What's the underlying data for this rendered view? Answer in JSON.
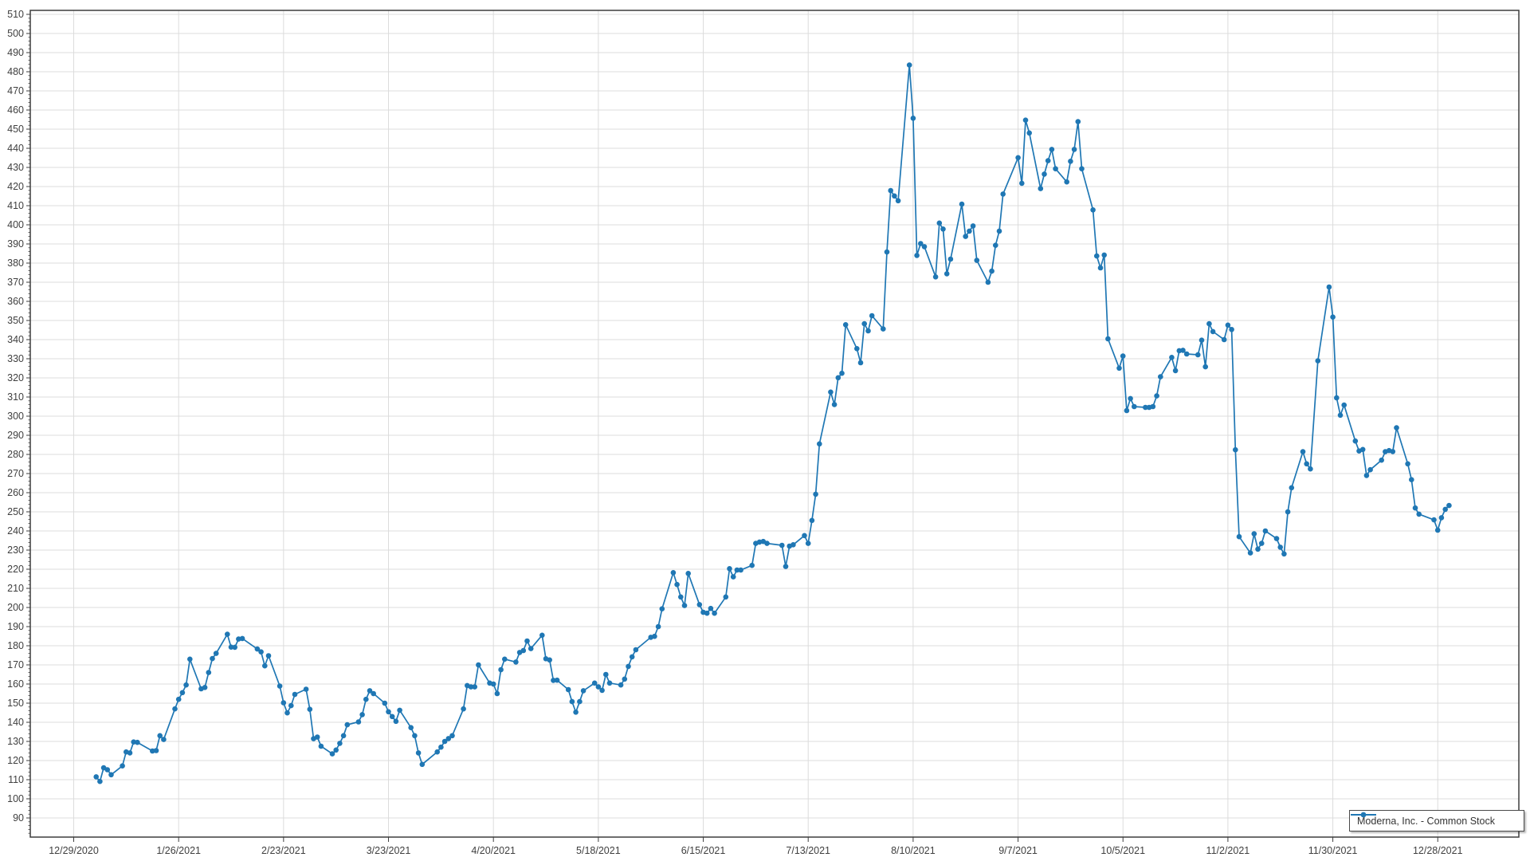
{
  "legend": {
    "label": "Moderna, Inc. - Common Stock"
  },
  "axis_colors": {
    "border": "#3d3d3d",
    "gridline": "#dcdcdc",
    "tick_text": "#3f3f3f"
  },
  "chart_data": {
    "type": "line",
    "title": "",
    "xlabel": "",
    "ylabel": "",
    "ylim": [
      80,
      512
    ],
    "y_ticks": {
      "min": 90,
      "max": 510,
      "step": 10,
      "minor_step": 2
    },
    "x_tick_labels": [
      "12/29/2020",
      "1/26/2021",
      "2/23/2021",
      "3/23/2021",
      "4/20/2021",
      "5/18/2021",
      "6/15/2021",
      "7/13/2021",
      "8/10/2021",
      "9/7/2021",
      "10/5/2021",
      "11/2/2021",
      "11/30/2021",
      "12/28/2021"
    ],
    "x_tick_dates": [
      "2020-12-29",
      "2021-01-26",
      "2021-02-23",
      "2021-03-23",
      "2021-04-20",
      "2021-05-18",
      "2021-06-15",
      "2021-07-13",
      "2021-08-10",
      "2021-09-07",
      "2021-10-05",
      "2021-11-02",
      "2021-11-30",
      "2021-12-28"
    ],
    "grid": "both",
    "legend_position": "bottom-right",
    "line_color": "#1f77b4",
    "marker": "circle",
    "series": [
      {
        "name": "Moderna, Inc. - Common Stock",
        "dates": [
          "2021-01-04",
          "2021-01-05",
          "2021-01-06",
          "2021-01-07",
          "2021-01-08",
          "2021-01-11",
          "2021-01-12",
          "2021-01-13",
          "2021-01-14",
          "2021-01-15",
          "2021-01-19",
          "2021-01-20",
          "2021-01-21",
          "2021-01-22",
          "2021-01-25",
          "2021-01-26",
          "2021-01-27",
          "2021-01-28",
          "2021-01-29",
          "2021-02-01",
          "2021-02-02",
          "2021-02-03",
          "2021-02-04",
          "2021-02-05",
          "2021-02-08",
          "2021-02-09",
          "2021-02-10",
          "2021-02-11",
          "2021-02-12",
          "2021-02-16",
          "2021-02-17",
          "2021-02-18",
          "2021-02-19",
          "2021-02-22",
          "2021-02-23",
          "2021-02-24",
          "2021-02-25",
          "2021-02-26",
          "2021-03-01",
          "2021-03-02",
          "2021-03-03",
          "2021-03-04",
          "2021-03-05",
          "2021-03-08",
          "2021-03-09",
          "2021-03-10",
          "2021-03-11",
          "2021-03-12",
          "2021-03-15",
          "2021-03-16",
          "2021-03-17",
          "2021-03-18",
          "2021-03-19",
          "2021-03-22",
          "2021-03-23",
          "2021-03-24",
          "2021-03-25",
          "2021-03-26",
          "2021-03-29",
          "2021-03-30",
          "2021-03-31",
          "2021-04-01",
          "2021-04-05",
          "2021-04-06",
          "2021-04-07",
          "2021-04-08",
          "2021-04-09",
          "2021-04-12",
          "2021-04-13",
          "2021-04-14",
          "2021-04-15",
          "2021-04-16",
          "2021-04-19",
          "2021-04-20",
          "2021-04-21",
          "2021-04-22",
          "2021-04-23",
          "2021-04-26",
          "2021-04-27",
          "2021-04-28",
          "2021-04-29",
          "2021-04-30",
          "2021-05-03",
          "2021-05-04",
          "2021-05-05",
          "2021-05-06",
          "2021-05-07",
          "2021-05-10",
          "2021-05-11",
          "2021-05-12",
          "2021-05-13",
          "2021-05-14",
          "2021-05-17",
          "2021-05-18",
          "2021-05-19",
          "2021-05-20",
          "2021-05-21",
          "2021-05-24",
          "2021-05-25",
          "2021-05-26",
          "2021-05-27",
          "2021-05-28",
          "2021-06-01",
          "2021-06-02",
          "2021-06-03",
          "2021-06-04",
          "2021-06-07",
          "2021-06-08",
          "2021-06-09",
          "2021-06-10",
          "2021-06-11",
          "2021-06-14",
          "2021-06-15",
          "2021-06-16",
          "2021-06-17",
          "2021-06-18",
          "2021-06-21",
          "2021-06-22",
          "2021-06-23",
          "2021-06-24",
          "2021-06-25",
          "2021-06-28",
          "2021-06-29",
          "2021-06-30",
          "2021-07-01",
          "2021-07-02",
          "2021-07-06",
          "2021-07-07",
          "2021-07-08",
          "2021-07-09",
          "2021-07-12",
          "2021-07-13",
          "2021-07-14",
          "2021-07-15",
          "2021-07-16",
          "2021-07-19",
          "2021-07-20",
          "2021-07-21",
          "2021-07-22",
          "2021-07-23",
          "2021-07-26",
          "2021-07-27",
          "2021-07-28",
          "2021-07-29",
          "2021-07-30",
          "2021-08-02",
          "2021-08-03",
          "2021-08-04",
          "2021-08-05",
          "2021-08-06",
          "2021-08-09",
          "2021-08-10",
          "2021-08-11",
          "2021-08-12",
          "2021-08-13",
          "2021-08-16",
          "2021-08-17",
          "2021-08-18",
          "2021-08-19",
          "2021-08-20",
          "2021-08-23",
          "2021-08-24",
          "2021-08-25",
          "2021-08-26",
          "2021-08-27",
          "2021-08-30",
          "2021-08-31",
          "2021-09-01",
          "2021-09-02",
          "2021-09-03",
          "2021-09-07",
          "2021-09-08",
          "2021-09-09",
          "2021-09-10",
          "2021-09-13",
          "2021-09-14",
          "2021-09-15",
          "2021-09-16",
          "2021-09-17",
          "2021-09-20",
          "2021-09-21",
          "2021-09-22",
          "2021-09-23",
          "2021-09-24",
          "2021-09-27",
          "2021-09-28",
          "2021-09-29",
          "2021-09-30",
          "2021-10-01",
          "2021-10-04",
          "2021-10-05",
          "2021-10-06",
          "2021-10-07",
          "2021-10-08",
          "2021-10-11",
          "2021-10-12",
          "2021-10-13",
          "2021-10-14",
          "2021-10-15",
          "2021-10-18",
          "2021-10-19",
          "2021-10-20",
          "2021-10-21",
          "2021-10-22",
          "2021-10-25",
          "2021-10-26",
          "2021-10-27",
          "2021-10-28",
          "2021-10-29",
          "2021-11-01",
          "2021-11-02",
          "2021-11-03",
          "2021-11-04",
          "2021-11-05",
          "2021-11-08",
          "2021-11-09",
          "2021-11-10",
          "2021-11-11",
          "2021-11-12",
          "2021-11-15",
          "2021-11-16",
          "2021-11-17",
          "2021-11-18",
          "2021-11-19",
          "2021-11-22",
          "2021-11-23",
          "2021-11-24",
          "2021-11-26",
          "2021-11-29",
          "2021-11-30",
          "2021-12-01",
          "2021-12-02",
          "2021-12-03",
          "2021-12-06",
          "2021-12-07",
          "2021-12-08",
          "2021-12-09",
          "2021-12-10",
          "2021-12-13",
          "2021-12-14",
          "2021-12-15",
          "2021-12-16",
          "2021-12-17",
          "2021-12-20",
          "2021-12-21",
          "2021-12-22",
          "2021-12-23",
          "2021-12-27",
          "2021-12-28",
          "2021-12-29",
          "2021-12-30",
          "2021-12-31"
        ],
        "values": [
          111.5,
          109.1,
          116.2,
          115.2,
          112.6,
          117.2,
          124.5,
          124.0,
          129.7,
          129.5,
          125.0,
          125.2,
          133.0,
          131.0,
          147.0,
          152.0,
          155.5,
          159.5,
          173.0,
          157.5,
          158.2,
          166.0,
          173.3,
          176.0,
          186.0,
          179.3,
          179.2,
          183.5,
          183.8,
          178.3,
          176.8,
          169.5,
          174.8,
          158.9,
          150.2,
          144.9,
          148.7,
          154.6,
          157.3,
          146.8,
          131.4,
          132.3,
          127.5,
          123.5,
          125.5,
          129.0,
          133.0,
          138.7,
          140.2,
          144.0,
          152.0,
          156.5,
          155.0,
          150.0,
          145.5,
          143.0,
          140.5,
          146.3,
          137.2,
          133.0,
          124.0,
          118.0,
          124.5,
          127.0,
          130.0,
          131.5,
          133.0,
          147.0,
          159.2,
          158.5,
          158.5,
          170.0,
          160.5,
          160.0,
          155.0,
          167.5,
          173.0,
          171.5,
          176.5,
          177.5,
          182.5,
          178.5,
          185.5,
          173.2,
          172.6,
          161.9,
          162.0,
          157.1,
          150.8,
          145.3,
          150.8,
          156.5,
          160.5,
          158.5,
          156.7,
          165.0,
          160.5,
          159.5,
          162.6,
          169.2,
          174.2,
          177.9,
          184.4,
          184.9,
          190.0,
          199.3,
          218.2,
          212.0,
          205.5,
          201.0,
          217.8,
          201.5,
          197.5,
          197.0,
          199.5,
          197.0,
          205.5,
          220.3,
          216.0,
          219.6,
          219.6,
          222.0,
          233.5,
          234.2,
          234.5,
          233.5,
          232.5,
          221.4,
          232.1,
          232.8,
          237.6,
          233.5,
          245.5,
          259.2,
          285.5,
          312.6,
          306.1,
          320.1,
          322.4,
          347.8,
          335.3,
          327.9,
          348.3,
          344.6,
          352.5,
          345.6,
          385.8,
          417.9,
          415.1,
          412.6,
          483.5,
          455.7,
          384.0,
          390.2,
          388.6,
          372.8,
          400.9,
          397.8,
          374.4,
          382.1,
          410.8,
          393.9,
          396.7,
          399.4,
          381.4,
          370.0,
          375.8,
          389.3,
          396.7,
          416.1,
          435.1,
          421.7,
          454.7,
          448.0,
          418.9,
          426.5,
          433.5,
          439.4,
          429.3,
          422.4,
          433.2,
          439.4,
          453.9,
          429.3,
          407.8,
          383.7,
          377.5,
          384.2,
          340.4,
          325.1,
          331.4,
          302.9,
          309.2,
          305.0,
          304.6,
          304.6,
          305.0,
          310.6,
          320.6,
          330.7,
          323.8,
          334.2,
          334.4,
          332.5,
          332.1,
          339.7,
          325.8,
          348.3,
          344.2,
          340.0,
          347.6,
          345.3,
          282.4,
          237.0,
          228.5,
          238.5,
          230.5,
          233.5,
          240.0,
          236.0,
          231.5,
          228.0,
          250.0,
          262.6,
          281.4,
          275.1,
          272.4,
          328.9,
          367.5,
          351.8,
          309.6,
          300.5,
          305.8,
          287.0,
          281.8,
          282.6,
          269.0,
          272.0,
          277.0,
          281.4,
          282.0,
          281.5,
          293.9,
          275.1,
          266.8,
          252.0,
          248.8,
          245.8,
          240.4,
          246.9,
          251.3,
          253.3
        ]
      }
    ]
  }
}
